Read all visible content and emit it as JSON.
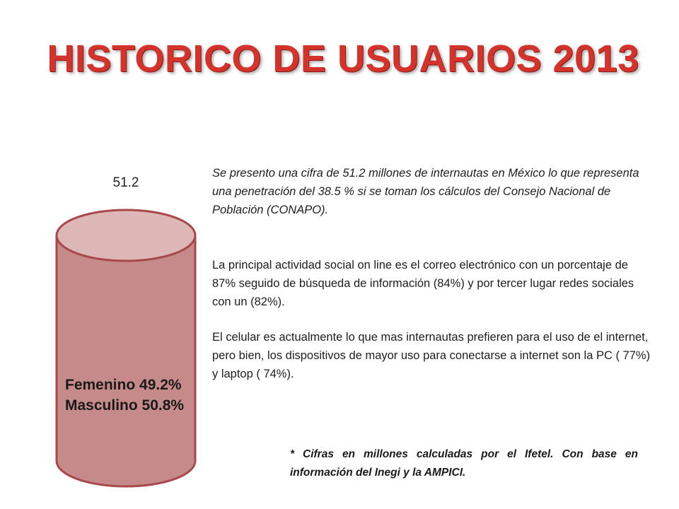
{
  "slide": {
    "title": "HISTORICO DE USUARIOS 2013",
    "value_label": "51.2",
    "gender": {
      "female": "Femenino 49.2%",
      "male": "Masculino 50.8%"
    },
    "paragraphs": {
      "p1": "Se presento una cifra de 51.2 millones de internautas en México  lo que representa una penetración del 38.5 % si se toman los cálculos del Consejo Nacional de Población (CONAPO).",
      "p2": "La principal actividad social on line es el correo electrónico con un porcentaje de 87% seguido de búsqueda de información (84%) y por tercer lugar  redes sociales con un (82%).",
      "p3": "El celular es actualmente lo que mas internautas prefieren para el uso de el internet, pero bien, los dispositivos de mayor uso para conectarse a internet son la PC ( 77%) y laptop ( 74%)."
    },
    "footnote": "* Cifras en millones calculadas por el Ifetel. Con base en información del Inegi y la AMPICI."
  },
  "colors": {
    "title": "#d4332c",
    "cylinder_body": "#c58a89",
    "cylinder_top": "#ddb7b6",
    "cylinder_outline": "#a8484a"
  }
}
